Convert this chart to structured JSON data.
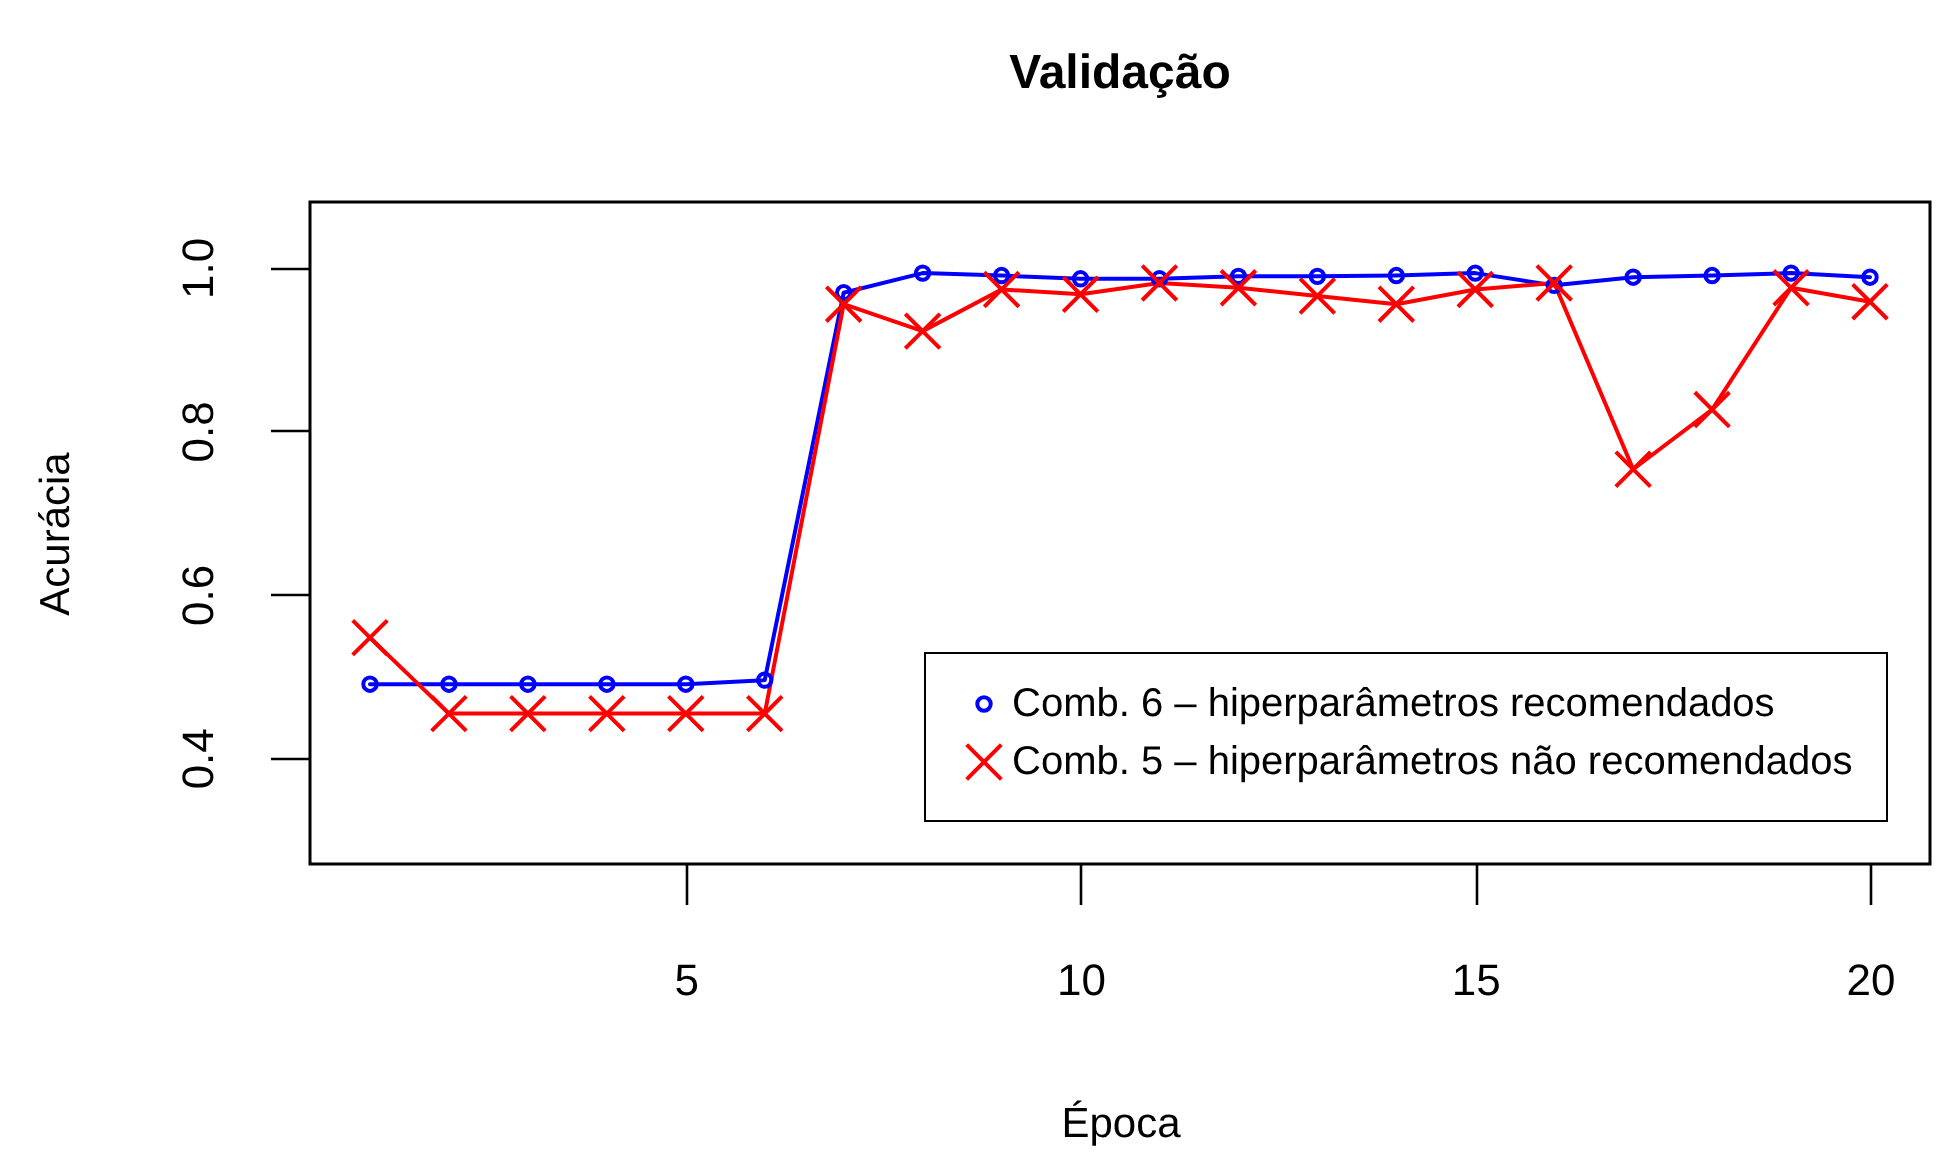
{
  "chart_data": {
    "type": "line",
    "title": "Validação",
    "xlabel": "Época",
    "ylabel": "Acurácia",
    "x": [
      1,
      2,
      3,
      4,
      5,
      6,
      7,
      8,
      9,
      10,
      11,
      12,
      13,
      14,
      15,
      16,
      17,
      18,
      19,
      20
    ],
    "series": [
      {
        "name": "Comb. 6 – hiperparâmetros recomendados",
        "color": "#0000ff",
        "marker": "circle",
        "values": [
          0.49,
          0.49,
          0.49,
          0.49,
          0.49,
          0.495,
          0.969,
          0.993,
          0.99,
          0.986,
          0.986,
          0.989,
          0.989,
          0.99,
          0.993,
          0.978,
          0.988,
          0.99,
          0.993,
          0.988
        ]
      },
      {
        "name": "Comb. 5 – hiperparâmetros não recomendados",
        "color": "#ff0000",
        "marker": "cross",
        "values": [
          0.547,
          0.454,
          0.454,
          0.454,
          0.454,
          0.454,
          0.955,
          0.922,
          0.973,
          0.967,
          0.981,
          0.975,
          0.965,
          0.955,
          0.973,
          0.981,
          0.753,
          0.826,
          0.975,
          0.958
        ]
      }
    ],
    "xlim": [
      0.24,
      20.76
    ],
    "ylim": [
      0.27,
      1.08
    ],
    "xticks": [
      5,
      10,
      15,
      20
    ],
    "yticks": [
      0.4,
      0.6,
      0.8,
      {
        "value": 1,
        "label": "1.0"
      }
    ],
    "legend": "bottom right",
    "line_style": "solid"
  }
}
